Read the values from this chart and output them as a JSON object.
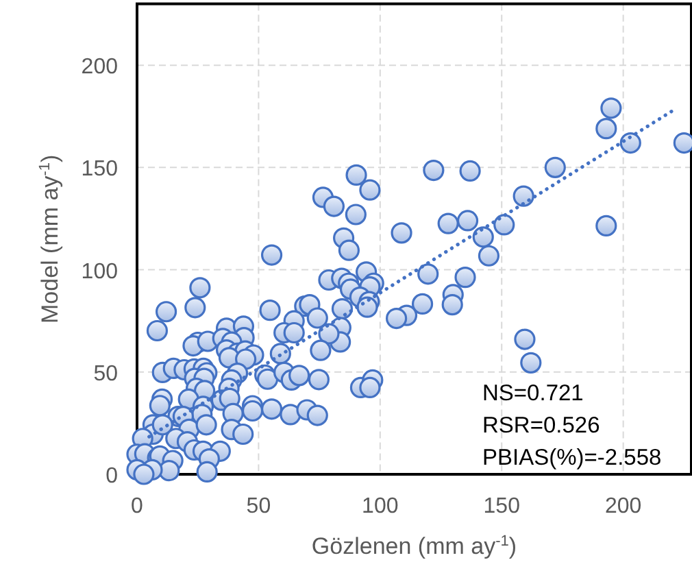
{
  "chart_data": {
    "type": "scatter",
    "xlabel": "Gözlenen (mm ay$^{-1}$)",
    "ylabel": "Model (mm ay$^{-1}$)",
    "xlim": [
      0,
      228
    ],
    "ylim": [
      0,
      230
    ],
    "xticks": [
      0,
      50,
      100,
      150,
      200
    ],
    "yticks": [
      0,
      50,
      100,
      150,
      200
    ],
    "grid": true,
    "annotations": [
      "NS=0.721",
      "RSR=0.526",
      "PBIAS(%)=-2.558"
    ],
    "series": [
      {
        "color": "#4472c4",
        "marker": "circle",
        "x": [
          90.2,
          95.8,
          76.5,
          81,
          90,
          85,
          108.8,
          195,
          193,
          203,
          225,
          172,
          122,
          137,
          159,
          128,
          136,
          151,
          142.4,
          193,
          144.7,
          119.7,
          135,
          130,
          129.7,
          117.4,
          110.9,
          106.7,
          159.5,
          162,
          87.2,
          55.4,
          25.9,
          12,
          23.9,
          8.3,
          54.7,
          78.9,
          84.2,
          87,
          87.8,
          94.3,
          97.3,
          95.8,
          91.7,
          95.5,
          94.7,
          69,
          71,
          74.2,
          84.4,
          64.6,
          60.5,
          64.6,
          83.8,
          83.6,
          78.9,
          75.5,
          59,
          36.8,
          43.8,
          44,
          25,
          23.1,
          29.1,
          35.3,
          38.9,
          36.8,
          41.3,
          44.5,
          47.9,
          37.9,
          44.7,
          10.5,
          15,
          19.4,
          23.5,
          27.3,
          28.7,
          23.7,
          27.6,
          24.4,
          27.8,
          41.3,
          38.9,
          37.8,
          34.8,
          38.1,
          52.6,
          53.7,
          60.5,
          63.5,
          66.7,
          74.8,
          92,
          96.9,
          95.8,
          10.3,
          9.4,
          21.2,
          27.2,
          26.7,
          16.9,
          19,
          21.4,
          28.5,
          47.5,
          47.5,
          55.4,
          63.1,
          69.9,
          74.2,
          39.5,
          38.9,
          43.6,
          6.6,
          6.6,
          10.5,
          2.3,
          16,
          20.7,
          23.5,
          27.2,
          34.2,
          29.7,
          0,
          3.2,
          8.5,
          9.4,
          14.7,
          13.2,
          6.2,
          0,
          2.8,
          28.8
        ],
        "values": [
          146.3,
          139,
          135.4,
          131,
          127,
          115.5,
          118,
          179,
          169,
          162,
          162,
          150,
          148.6,
          148.3,
          136,
          122.6,
          124,
          122,
          116,
          121.5,
          106.8,
          97.9,
          96.3,
          87.8,
          82.9,
          83.3,
          77.7,
          76.2,
          66,
          54.5,
          109.5,
          107.2,
          91.2,
          79.5,
          81.5,
          70.2,
          80.2,
          95,
          95.8,
          93.4,
          90.5,
          98.9,
          93.4,
          91.6,
          86.6,
          84.4,
          81.7,
          82.2,
          82.9,
          76.4,
          80.9,
          75,
          69.2,
          69.2,
          71.7,
          64.7,
          68.7,
          60.6,
          59,
          71.4,
          72.4,
          66.8,
          64.5,
          62.8,
          65,
          66.4,
          64.6,
          60.8,
          59.2,
          60.3,
          58.3,
          57,
          56.3,
          49.8,
          51.8,
          51.1,
          51.5,
          51.8,
          49.6,
          46.9,
          46.9,
          42,
          40.9,
          49.4,
          46.1,
          42,
          36.2,
          37.1,
          48.5,
          46.5,
          49.8,
          46.1,
          48.3,
          46.3,
          42.4,
          46.1,
          42.4,
          36.7,
          33.6,
          36.7,
          33.2,
          29.2,
          28.3,
          28.3,
          22,
          24.2,
          33.5,
          31,
          31.9,
          29.2,
          31.5,
          28.8,
          29.7,
          21.9,
          19.6,
          24.2,
          19.6,
          24.2,
          17.5,
          17.5,
          15.9,
          11.9,
          11.3,
          11.3,
          7.5,
          9.8,
          10,
          8,
          8.9,
          6.7,
          1.8,
          2.2,
          2.2,
          0,
          1.2
        ]
      },
      {
        "type": "line",
        "color": "#4472c4",
        "line_style": "dotted",
        "x": [
          5,
          222
        ],
        "values": [
          18.4,
          179
        ]
      }
    ]
  }
}
